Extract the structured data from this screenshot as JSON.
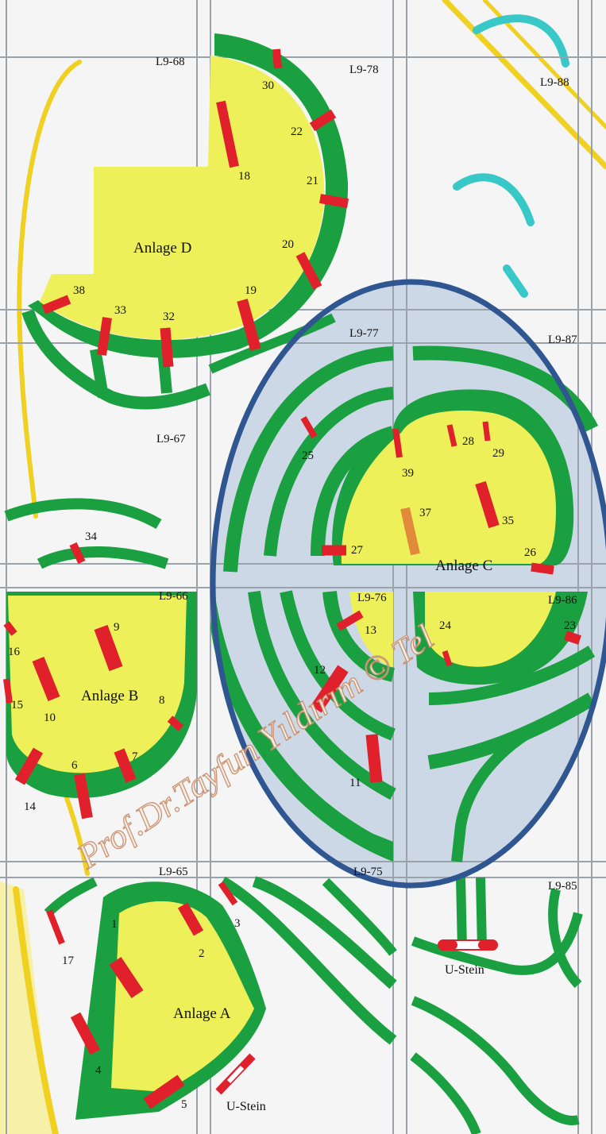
{
  "colors": {
    "background": "#f4f5f4",
    "grid_line": "#9aa2ac",
    "bank": "#1aa040",
    "plateau": "#eef05a",
    "trench": "#e0202a",
    "trench_orange": "#e08a3a",
    "road": "#f0d020",
    "river": "#38c8c8",
    "focus_ring": "#2f5690",
    "focus_fill": "#cdd8e6",
    "watermark_stroke": "#c98b6a"
  },
  "grid_labels": [
    "L9-68",
    "L9-78",
    "L9-88",
    "L9-67",
    "L9-77",
    "L9-87",
    "L9-66",
    "L9-76",
    "L9-86",
    "L9-65",
    "L9-75",
    "L9-85"
  ],
  "enclosures": [
    {
      "name": "Anlage D"
    },
    {
      "name": "Anlage C"
    },
    {
      "name": "Anlage B"
    },
    {
      "name": "Anlage A"
    }
  ],
  "trenches": [
    "30",
    "22",
    "18",
    "21",
    "20",
    "19",
    "38",
    "33",
    "32",
    "25",
    "39",
    "28",
    "29",
    "37",
    "35",
    "27",
    "26",
    "34",
    "9",
    "16",
    "10",
    "15",
    "8",
    "6",
    "7",
    "14",
    "13",
    "12",
    "11",
    "24",
    "23",
    "1",
    "2",
    "3",
    "17",
    "4",
    "5"
  ],
  "ustein_labels": [
    "U-Stein",
    "U-Stein"
  ],
  "watermark": "Prof.Dr.Tayfun Yıldırım © Tel"
}
